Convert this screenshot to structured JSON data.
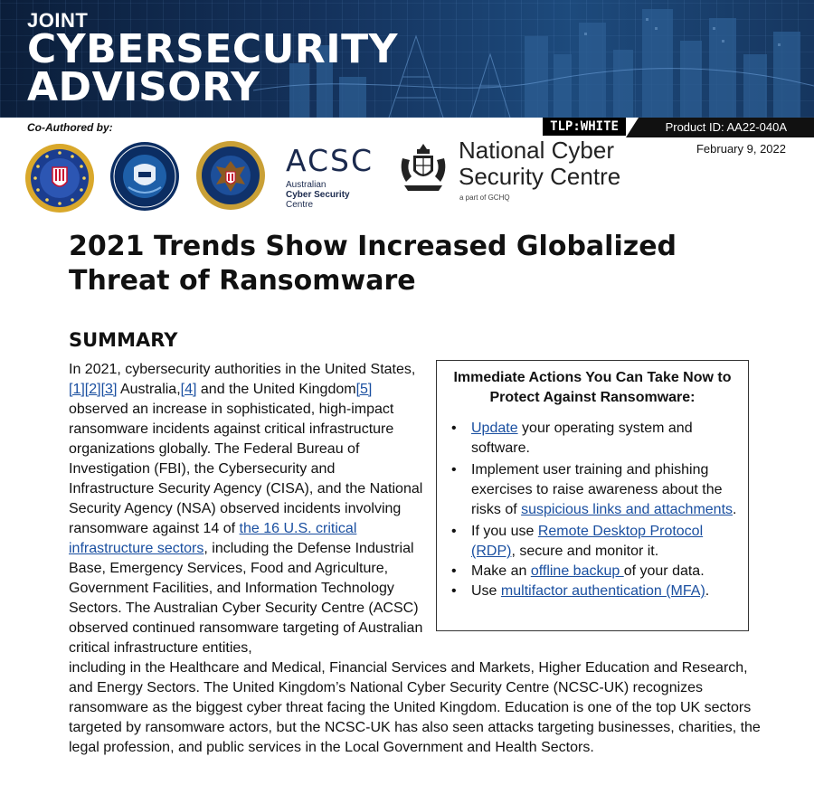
{
  "banner": {
    "line1": "JOINT",
    "line2": "CYBERSECURITY",
    "line3": "ADVISORY"
  },
  "tlp": "TLP:WHITE",
  "product_id": "Product ID: AA22-040A",
  "date": "February 9, 2022",
  "coauthored_label": "Co-Authored by:",
  "logos": {
    "fbi_icon": "fbi-seal-icon",
    "cisa_icon": "cisa-seal-icon",
    "nsa_icon": "nsa-seal-icon",
    "acsc_word": "ACSC",
    "acsc_sub1": "Australian",
    "acsc_sub2": "Cyber Security",
    "acsc_sub3": "Centre",
    "ncsc_line1": "National Cyber",
    "ncsc_line2": "Security Centre",
    "ncsc_sub": "a part of GCHQ"
  },
  "title": "2021 Trends Show Increased Globalized Threat of Ransomware",
  "summary_heading": "SUMMARY",
  "para": {
    "s1": "In 2021, cybersecurity authorities in the United States,",
    "ref1": "[1]",
    "ref2": "[2]",
    "ref3": "[3]",
    "s2": " Australia,",
    "ref4": "[4]",
    "s3": " and the United Kingdom",
    "ref5": "[5]",
    "s4": " observed an increase in sophisticated, high-impact ransomware incidents against critical infrastructure organizations globally. The Federal Bureau of Investigation (FBI), the Cybersecurity and Infrastructure Security Agency (CISA), and the National Security Agency (NSA) observed incidents involving ransomware against 14 of ",
    "link_sectors": "the 16 U.S. critical infrastructure sectors",
    "s5": ", including the Defense Industrial Base, Emergency Services, Food and Agriculture, Government Facilities, and Information Technology Sectors. The Australian Cyber Security Centre (ACSC) observed continued ransomware targeting of Australian critical infrastructure entities,",
    "s6": "including in the Healthcare and Medical, Financial Services and Markets, Higher Education and Research, and Energy Sectors. The United Kingdom’s National Cyber Security Centre (NCSC-UK) recognizes ransomware as the biggest cyber threat facing the United Kingdom. Education is one of the top UK sectors targeted by ransomware actors, but the NCSC-UK has also seen attacks targeting businesses, charities, the legal profession, and public services in the Local Government and Health Sectors."
  },
  "actions": {
    "title": "Immediate Actions You Can Take Now to Protect Against Ransomware:",
    "item1_link": "Update",
    "item1_rest": " your operating system and software.",
    "item2_pre": "Implement user training and phishing exercises to raise awareness about the risks of ",
    "item2_link": "suspicious links and attachments",
    "item2_post": ".",
    "item3_pre": "If you use ",
    "item3_link": "Remote Desktop Protocol (RDP)",
    "item3_post": ", secure and monitor it.",
    "item4_pre": "Make an ",
    "item4_link": "offline backup ",
    "item4_post": "of your data.",
    "item5_pre": "Use ",
    "item5_link": "multifactor authentication (MFA)",
    "item5_post": "."
  }
}
